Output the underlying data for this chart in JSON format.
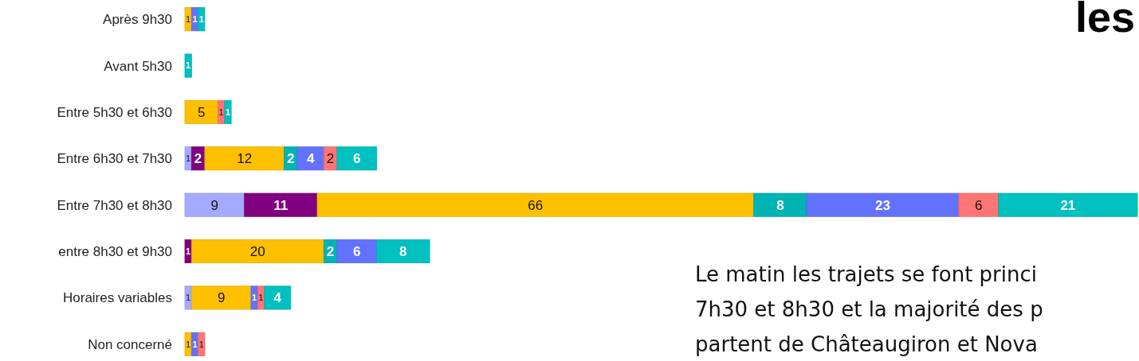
{
  "chart_data": {
    "type": "bar",
    "orientation": "horizontal",
    "stacked": true,
    "data_labels": true,
    "title": "les",
    "categories": [
      "Après 9h30",
      "Avant 5h30",
      "Entre 5h30 et 6h30",
      "Entre 6h30 et 7h30",
      "Entre 7h30 et 8h30",
      "entre 8h30 et 9h30",
      "Horaires variables",
      "Non concerné"
    ],
    "series": [
      {
        "color": "#a3aaff",
        "values": [
          null,
          null,
          null,
          1,
          9,
          null,
          1,
          null
        ]
      },
      {
        "color": "#800080",
        "values": [
          null,
          null,
          null,
          2,
          11,
          1,
          null,
          null
        ]
      },
      {
        "color": "#ffc000",
        "values": [
          1,
          null,
          5,
          12,
          66,
          20,
          9,
          1
        ]
      },
      {
        "color": "#00b4b4",
        "values": [
          null,
          null,
          null,
          2,
          8,
          2,
          null,
          null
        ]
      },
      {
        "color": "#6272ff",
        "values": [
          1,
          null,
          null,
          4,
          23,
          6,
          1,
          1
        ]
      },
      {
        "color": "#ff7474",
        "values": [
          null,
          null,
          1,
          2,
          6,
          null,
          1,
          1
        ]
      },
      {
        "color": "#00c0c0",
        "values": [
          1,
          1,
          1,
          6,
          21,
          8,
          4,
          null
        ]
      }
    ],
    "annotations": [
      "Le matin les trajets se font princi",
      "7h30 et 8h30 et la majorité des p",
      "partent de Châteaugiron et Nova"
    ]
  }
}
